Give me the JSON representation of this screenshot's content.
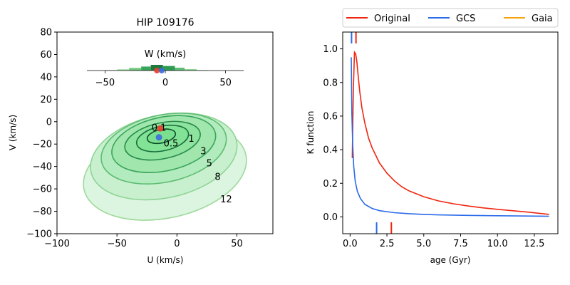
{
  "chart_data": [
    {
      "type": "contour",
      "title": "HIP 109176",
      "xlabel": "U (km/s)",
      "ylabel": "V (km/s)",
      "xlim": [
        -100,
        80
      ],
      "ylim": [
        -100,
        80
      ],
      "xticks": [
        "−100",
        "−50",
        "0",
        "50"
      ],
      "yticks": [
        "−100",
        "−80",
        "−60",
        "−40",
        "−20",
        "0",
        "20",
        "40",
        "60",
        "80"
      ],
      "contour_levels": [
        "0.1",
        "0.5",
        "1",
        "3",
        "5",
        "8",
        "12"
      ],
      "contour_center": {
        "u": -12,
        "v": -15
      },
      "contours": [
        {
          "level": "12",
          "ru": 69,
          "rv": 41,
          "cu": -10,
          "cv": -45,
          "color": "#9ed99a",
          "fill": "#dcf5e0"
        },
        {
          "level": "8",
          "ru": 62,
          "rv": 37,
          "cu": -11,
          "cv": -31,
          "color": "#8fd495",
          "fill": "#c8f0cf"
        },
        {
          "level": "5",
          "ru": 53,
          "rv": 30,
          "cu": -11,
          "cv": -24,
          "color": "#5ebc72",
          "fill": "#b2ebbd"
        },
        {
          "level": "3",
          "ru": 44,
          "rv": 24,
          "cu": -11,
          "cv": -20,
          "color": "#3aa55b",
          "fill": "#a0e6ad"
        },
        {
          "level": "1",
          "ru": 32,
          "rv": 16,
          "cu": -12,
          "cv": -17,
          "color": "#268a48",
          "fill": "#8ee39f"
        },
        {
          "level": "0.5",
          "ru": 22,
          "rv": 11,
          "cu": -12,
          "cv": -15,
          "color": "#17703a",
          "fill": "#82e296"
        },
        {
          "level": "0.1",
          "ru": 12,
          "rv": 6,
          "cu": -13,
          "cv": -13,
          "color": "#0b4f27",
          "fill": "#7adf8f"
        }
      ],
      "points": [
        {
          "name": "Original",
          "u": -14,
          "v": -6,
          "color": "#e8432d"
        },
        {
          "name": "GCS",
          "u": -15,
          "v": -14,
          "color": "#3d6be0"
        }
      ],
      "inset": {
        "title": "W (km/s)",
        "xlim": [
          -65,
          65
        ],
        "xticks": [
          "−50",
          "0",
          "50"
        ],
        "bins": [
          {
            "from": -50,
            "to": -40,
            "h": 0.1,
            "color": "#c5ecc4"
          },
          {
            "from": -40,
            "to": -30,
            "h": 0.22,
            "color": "#9fdc9e"
          },
          {
            "from": -30,
            "to": -20,
            "h": 0.45,
            "color": "#6cc67a"
          },
          {
            "from": -20,
            "to": -12,
            "h": 0.7,
            "color": "#3aa55b"
          },
          {
            "from": -12,
            "to": -2,
            "h": 1.0,
            "color": "#1d7a3c"
          },
          {
            "from": -2,
            "to": 8,
            "h": 0.8,
            "color": "#2f9a52"
          },
          {
            "from": 8,
            "to": 16,
            "h": 0.5,
            "color": "#5ebc72"
          },
          {
            "from": 16,
            "to": 26,
            "h": 0.25,
            "color": "#8fd495"
          },
          {
            "from": 26,
            "to": 36,
            "h": 0.1,
            "color": "#c5ecc4"
          }
        ],
        "markers": [
          {
            "name": "Original",
            "w": -7,
            "color": "#e8432d"
          },
          {
            "name": "GCS",
            "w": -3,
            "color": "#3d6be0"
          }
        ]
      }
    },
    {
      "type": "line",
      "xlabel": "age (Gyr)",
      "ylabel": "K function",
      "xlim": [
        -0.5,
        14.1
      ],
      "ylim": [
        -0.1,
        1.1
      ],
      "xticks": [
        0.0,
        2.5,
        5.0,
        7.5,
        10.0,
        12.5
      ],
      "xtick_labels": [
        "0.0",
        "2.5",
        "5.0",
        "7.5",
        "10.0",
        "12.5"
      ],
      "yticks": [
        0.0,
        0.2,
        0.4,
        0.6,
        0.8,
        1.0
      ],
      "ytick_labels": [
        "0.0",
        "0.2",
        "0.4",
        "0.6",
        "0.8",
        "1.0"
      ],
      "legend": {
        "placement": "top",
        "entries": [
          "Original",
          "GCS",
          "Gaia"
        ]
      },
      "series": [
        {
          "name": "Original",
          "color": "#f0250f",
          "x": [
            0.15,
            0.22,
            0.3,
            0.38,
            0.45,
            0.55,
            0.65,
            0.8,
            1.0,
            1.25,
            1.5,
            2.0,
            2.5,
            3.0,
            3.5,
            4.0,
            5.0,
            6.0,
            7.0,
            8.0,
            9.0,
            10.0,
            11.0,
            12.0,
            13.5
          ],
          "y": [
            0.35,
            0.75,
            0.98,
            0.97,
            0.93,
            0.84,
            0.75,
            0.65,
            0.56,
            0.47,
            0.41,
            0.32,
            0.26,
            0.215,
            0.18,
            0.155,
            0.12,
            0.095,
            0.078,
            0.065,
            0.054,
            0.045,
            0.037,
            0.029,
            0.015
          ]
        },
        {
          "name": "GCS",
          "color": "#2a6be8",
          "x": [
            0.08,
            0.12,
            0.18,
            0.25,
            0.35,
            0.5,
            0.7,
            1.0,
            1.5,
            2.0,
            3.0,
            4.0,
            5.0,
            6.0,
            8.0,
            10.0,
            12.0,
            13.5
          ],
          "y": [
            0.95,
            0.62,
            0.42,
            0.3,
            0.21,
            0.15,
            0.11,
            0.075,
            0.05,
            0.037,
            0.025,
            0.019,
            0.015,
            0.012,
            0.009,
            0.007,
            0.005,
            0.004
          ]
        },
        {
          "name": "Gaia",
          "color": "#f7a30e",
          "x": [],
          "y": []
        }
      ],
      "top_ticks": [
        {
          "series": "GCS",
          "x": 0.1,
          "color": "#2a6be8"
        },
        {
          "series": "Original",
          "x": 0.4,
          "color": "#f0250f"
        }
      ],
      "bottom_ticks": [
        {
          "series": "GCS",
          "x": 1.8,
          "color": "#2a6be8"
        },
        {
          "series": "Original",
          "x": 2.8,
          "color": "#f0250f"
        }
      ]
    }
  ]
}
